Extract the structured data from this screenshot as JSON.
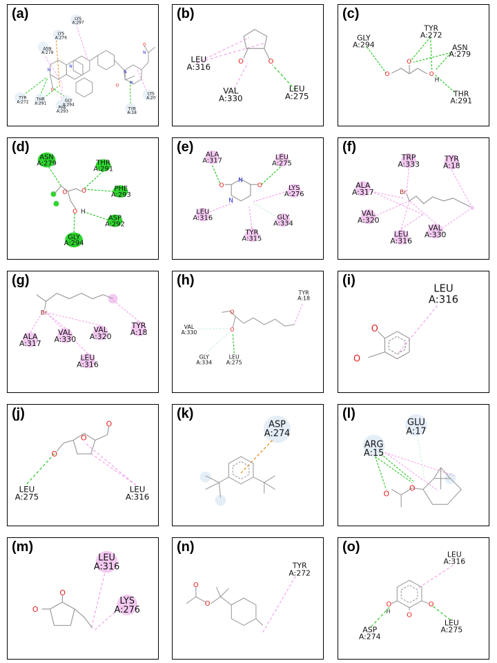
{
  "panels": [
    {
      "id": "a",
      "label": "(a)",
      "residues": [
        {
          "key": "lys297",
          "name": "LYS",
          "num": "A:297"
        },
        {
          "key": "lys276",
          "name": "LYS",
          "num": "A:276"
        },
        {
          "key": "asn279",
          "name": "ASN",
          "num": "A:279"
        },
        {
          "key": "tyr272",
          "name": "TYR",
          "num": "A:272"
        },
        {
          "key": "thr291",
          "name": "THR",
          "num": "A:291"
        },
        {
          "key": "gly294",
          "name": "GLY",
          "num": "A:294"
        },
        {
          "key": "phe293",
          "name": "PHE",
          "num": "A:293"
        },
        {
          "key": "tyr18",
          "name": "TYR",
          "num": "A:18"
        },
        {
          "key": "lys20",
          "name": "LYS",
          "num": "A:20"
        }
      ],
      "atoms": [
        "N",
        "N",
        "N",
        "O",
        "N",
        "O",
        "O",
        "N"
      ]
    },
    {
      "id": "b",
      "label": "(b)",
      "residues": [
        {
          "key": "leu316",
          "name": "LEU",
          "num": "A:316"
        },
        {
          "key": "val330",
          "name": "VAL",
          "num": "A:330"
        },
        {
          "key": "leu275",
          "name": "LEU",
          "num": "A:275"
        }
      ],
      "atoms": [
        "O",
        "O"
      ]
    },
    {
      "id": "c",
      "label": "(c)",
      "residues": [
        {
          "key": "gly294",
          "name": "GLY",
          "num": "A:294"
        },
        {
          "key": "tyr272",
          "name": "TYR",
          "num": "A:272"
        },
        {
          "key": "asn279",
          "name": "ASN",
          "num": "A:279"
        },
        {
          "key": "thr291",
          "name": "THR",
          "num": "A:291"
        }
      ],
      "atoms": [
        "O",
        "O",
        "O",
        "H"
      ]
    },
    {
      "id": "d",
      "label": "(d)",
      "residues": [
        {
          "key": "asn279",
          "name": "ASN",
          "num": "A:279"
        },
        {
          "key": "thr291",
          "name": "THR",
          "num": "A:291"
        },
        {
          "key": "phe293",
          "name": "PHE",
          "num": "A:293"
        },
        {
          "key": "asp292",
          "name": "ASP",
          "num": "A:292"
        },
        {
          "key": "gly294",
          "name": "GLY",
          "num": "A:294"
        }
      ],
      "atoms": [
        "O",
        "O",
        "O",
        "H"
      ]
    },
    {
      "id": "e",
      "label": "(e)",
      "residues": [
        {
          "key": "ala317",
          "name": "ALA",
          "num": "A:317"
        },
        {
          "key": "leu275",
          "name": "LEU",
          "num": "A:275"
        },
        {
          "key": "lys276",
          "name": "LYS",
          "num": "A:276"
        },
        {
          "key": "leu316",
          "name": "LEU",
          "num": "A:316"
        },
        {
          "key": "gly334",
          "name": "GLY",
          "num": "A:334"
        },
        {
          "key": "tyr315",
          "name": "TYR",
          "num": "A:315"
        }
      ],
      "atoms": [
        "O",
        "N",
        "O",
        "N"
      ]
    },
    {
      "id": "f",
      "label": "(f)",
      "residues": [
        {
          "key": "trp333",
          "name": "TRP",
          "num": "A:333"
        },
        {
          "key": "tyr18",
          "name": "TYR",
          "num": "A:18"
        },
        {
          "key": "ala317",
          "name": "ALA",
          "num": "A:317"
        },
        {
          "key": "val320",
          "name": "VAL",
          "num": "A:320"
        },
        {
          "key": "leu316",
          "name": "LEU",
          "num": "A:316"
        },
        {
          "key": "val330",
          "name": "VAL",
          "num": "A:330"
        }
      ],
      "atoms": [
        "Br"
      ]
    },
    {
      "id": "g",
      "label": "(g)",
      "residues": [
        {
          "key": "ala317",
          "name": "ALA",
          "num": "A:317"
        },
        {
          "key": "val330",
          "name": "VAL",
          "num": "A:330"
        },
        {
          "key": "val320",
          "name": "VAL",
          "num": "A:320"
        },
        {
          "key": "tyr18",
          "name": "TYR",
          "num": "A:18"
        },
        {
          "key": "leu316",
          "name": "LEU",
          "num": "A:316"
        }
      ],
      "atoms": [
        "Br"
      ]
    },
    {
      "id": "h",
      "label": "(h)",
      "residues": [
        {
          "key": "tyr18",
          "name": "TYR",
          "num": "A:18"
        },
        {
          "key": "val330",
          "name": "VAL",
          "num": "A:330"
        },
        {
          "key": "gly334",
          "name": "GLY",
          "num": "A:334"
        },
        {
          "key": "leu275",
          "name": "LEU",
          "num": "A:275"
        }
      ],
      "atoms": [
        "O",
        "O"
      ]
    },
    {
      "id": "i",
      "label": "(i)",
      "residues": [
        {
          "key": "leu316",
          "name": "LEU",
          "num": "A:316"
        }
      ],
      "atoms": [
        "O",
        "O"
      ]
    },
    {
      "id": "j",
      "label": "(j)",
      "residues": [
        {
          "key": "leu275",
          "name": "LEU",
          "num": "A:275"
        },
        {
          "key": "leu316",
          "name": "LEU",
          "num": "A:316"
        }
      ],
      "atoms": [
        "O",
        "O",
        "O"
      ]
    },
    {
      "id": "k",
      "label": "(k)",
      "residues": [
        {
          "key": "asp274",
          "name": "ASP",
          "num": "A:274"
        }
      ],
      "atoms": []
    },
    {
      "id": "l",
      "label": "(l)",
      "residues": [
        {
          "key": "glu17",
          "name": "GLU",
          "num": "A:17"
        },
        {
          "key": "arg15",
          "name": "ARG",
          "num": "A:15"
        }
      ],
      "atoms": [
        "O",
        "O"
      ]
    },
    {
      "id": "m",
      "label": "(m)",
      "residues": [
        {
          "key": "leu316",
          "name": "LEU",
          "num": "A:316"
        },
        {
          "key": "lys276",
          "name": "LYS",
          "num": "A:276"
        }
      ],
      "atoms": [
        "O",
        "O"
      ]
    },
    {
      "id": "n",
      "label": "(n)",
      "residues": [
        {
          "key": "tyr272",
          "name": "TYR",
          "num": "A:272"
        }
      ],
      "atoms": [
        "O",
        "O"
      ]
    },
    {
      "id": "o",
      "label": "(o)",
      "residues": [
        {
          "key": "leu316",
          "name": "LEU",
          "num": "A:316"
        },
        {
          "key": "asp274",
          "name": "ASP",
          "num": "A:274"
        },
        {
          "key": "leu275",
          "name": "LEU",
          "num": "A:275"
        }
      ],
      "atoms": [
        "O",
        "H",
        "O",
        "O"
      ]
    }
  ],
  "colors": {
    "hbond": "#22c41e",
    "pi_alkyl": "#f2a0ec",
    "pi_anion": "#e8891a",
    "carbon_h": "#cdeedd",
    "vdw": "#cde3f2",
    "oxygen": "#e51b1b",
    "nitrogen": "#2b2bd8",
    "bromine": "#a02828",
    "bond": "#9a9a9a",
    "green_disc": "#2fd42f",
    "pink_disc": "#f3c9f1",
    "blue_disc": "#e4eef7"
  }
}
